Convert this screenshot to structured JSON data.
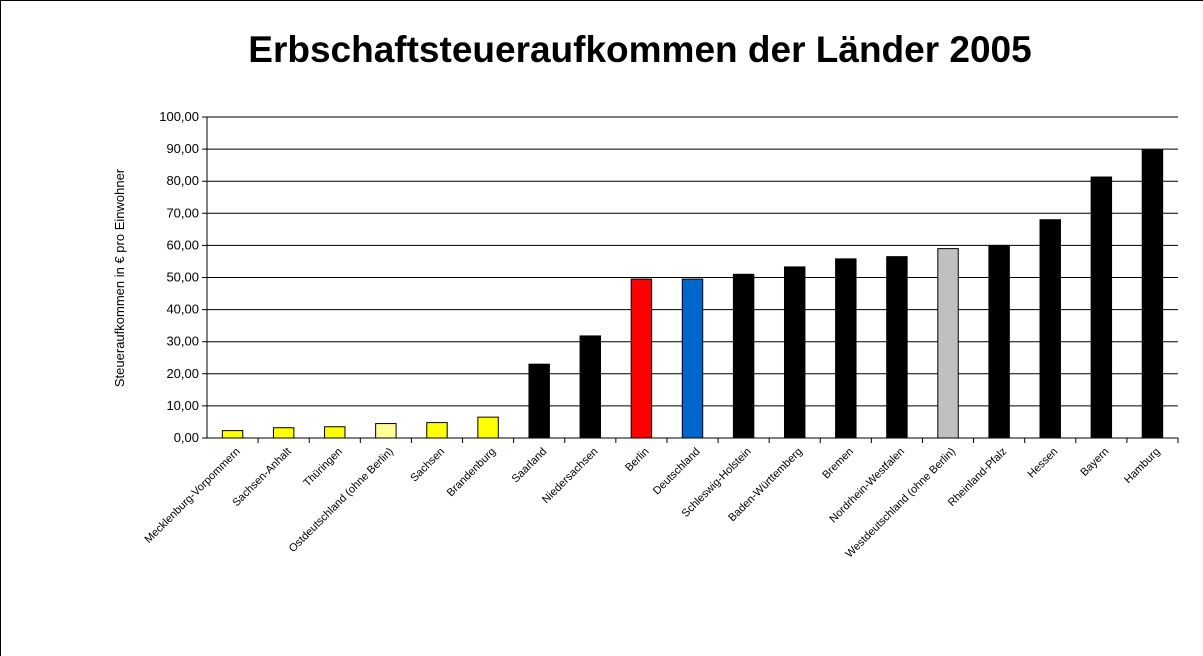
{
  "chart_data": {
    "type": "bar",
    "title": "Erbschaftsteueraufkommen der Länder 2005",
    "y_label": "Steueraufkommen in € pro Einwohner",
    "categories": [
      "Mecklenburg-Vorpommern",
      "Sachsen-Anhalt",
      "Thüringen",
      "Ostdeutschland (ohne Berlin)",
      "Sachsen",
      "Brandenburg",
      "Saarland",
      "Niedersachsen",
      "Berlin",
      "Deutschland",
      "Schleswig-Holstein",
      "Baden-Württemberg",
      "Bremen",
      "Nordrhein-Westfalen",
      "Westdeutschland (ohne Berlin)",
      "Rheinland-Pfalz",
      "Hessen",
      "Bayern",
      "Hamburg"
    ],
    "values": [
      2.3,
      3.2,
      3.5,
      4.5,
      4.8,
      6.5,
      23.0,
      31.8,
      49.5,
      49.5,
      51.0,
      53.3,
      55.8,
      56.5,
      59.0,
      60.0,
      68.0,
      81.3,
      89.7
    ],
    "colors": [
      "#ffff00",
      "#ffff00",
      "#ffff00",
      "#ffff99",
      "#ffff00",
      "#ffff00",
      "#000000",
      "#000000",
      "#ff0000",
      "#0066cc",
      "#000000",
      "#000000",
      "#000000",
      "#000000",
      "#c0c0c0",
      "#000000",
      "#000000",
      "#000000",
      "#000000"
    ],
    "ylim": [
      0,
      100
    ],
    "yticks": [
      {
        "value": 0,
        "label": "0,00"
      },
      {
        "value": 10,
        "label": "10,00"
      },
      {
        "value": 20,
        "label": "20,00"
      },
      {
        "value": 30,
        "label": "30,00"
      },
      {
        "value": 40,
        "label": "40,00"
      },
      {
        "value": 50,
        "label": "50,00"
      },
      {
        "value": 60,
        "label": "60,00"
      },
      {
        "value": 70,
        "label": "70,00"
      },
      {
        "value": 80,
        "label": "80,00"
      },
      {
        "value": 90,
        "label": "90,00"
      },
      {
        "value": 100,
        "label": "100,00"
      }
    ],
    "grid": true
  }
}
